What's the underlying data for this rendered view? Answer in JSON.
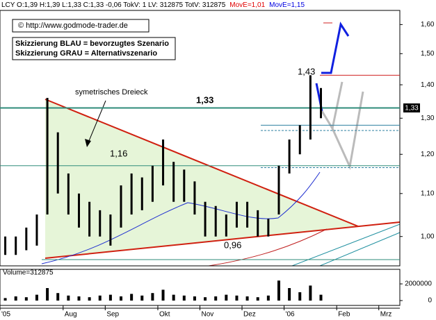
{
  "header": [
    {
      "text": "LCY O:1,39 H:1,39 L:1,33 C:1,33 -0,06 TokV: 1 LV: 312875 TotV: 312875",
      "color": "#000000"
    },
    {
      "text": "MovE=1,01",
      "color": "#e00000"
    },
    {
      "text": "MovE=1,15",
      "color": "#0000e0"
    }
  ],
  "annotations": {
    "copyright": "© http://www.godmode-trader.de",
    "legend_blue": "Skizzierung BLAU = bevorzugtes Szenario",
    "legend_grey": "Skizzierung GRAU = Alternativszenario",
    "pattern": "symetrisches Dreieck",
    "level_133": "1,33",
    "level_116": "1,16",
    "level_096": "0,96",
    "level_143": "1,43",
    "last_price": "1,33"
  },
  "chart_data": [
    {
      "type": "range",
      "log": true,
      "ylim": [
        0.937,
        1.651
      ],
      "yticks": [
        {
          "value": 1.0,
          "label": "1,00"
        },
        {
          "value": 1.1,
          "label": "1,10"
        },
        {
          "value": 1.2,
          "label": "1,20"
        },
        {
          "value": 1.3,
          "label": "1,30"
        },
        {
          "value": 1.4,
          "label": "1,40"
        },
        {
          "value": 1.5,
          "label": "1,50"
        },
        {
          "value": 1.6,
          "label": "1,60"
        }
      ],
      "categories": [
        "'05",
        null,
        null,
        null,
        null,
        null,
        "Aug",
        null,
        null,
        null,
        "Sep",
        null,
        null,
        null,
        null,
        "Okt",
        null,
        null,
        null,
        "Nov",
        null,
        null,
        null,
        "Dez",
        null,
        null,
        null,
        "'06",
        null,
        null,
        null,
        null,
        "Feb",
        null,
        null,
        null,
        "Mrz",
        null
      ],
      "color": "#000000",
      "low": [
        0.96,
        0.96,
        0.97,
        0.98,
        1.05,
        1.1,
        1.05,
        1.02,
        1.0,
        1.0,
        0.98,
        1.02,
        1.05,
        1.06,
        1.08,
        1.12,
        1.08,
        1.08,
        1.05,
        1.0,
        1.0,
        1.0,
        1.02,
        1.02,
        1.0,
        1.0,
        1.05,
        1.15,
        1.2,
        1.24,
        1.3,
        null,
        null,
        null,
        null,
        null,
        null,
        null
      ],
      "high": [
        1.0,
        1.0,
        1.02,
        1.05,
        1.36,
        1.26,
        1.15,
        1.1,
        1.08,
        1.06,
        1.05,
        1.12,
        1.15,
        1.14,
        1.17,
        1.24,
        1.18,
        1.16,
        1.13,
        1.08,
        1.07,
        1.05,
        1.08,
        1.08,
        1.06,
        1.04,
        1.17,
        1.24,
        1.28,
        1.43,
        1.39,
        null,
        null,
        null,
        null,
        null,
        null,
        null
      ],
      "levels": [
        {
          "value": 1.33,
          "color": "#2e8b7a"
        },
        {
          "value": 1.43,
          "color": "#d02020"
        },
        {
          "value": 1.28,
          "color": "#2e7fa0"
        },
        {
          "value": 1.265,
          "color": "#2e7fa0"
        },
        {
          "value": 1.17,
          "color": "#2e8b7a"
        },
        {
          "value": 1.165,
          "color": "#2e7fa0"
        },
        {
          "value": 0.95,
          "color": "#2e8b7a"
        }
      ]
    },
    {
      "type": "bar",
      "title": "Volume=312875",
      "ylim": [
        0,
        3000000
      ],
      "yticks": [
        0,
        2000000
      ],
      "color": "#000000",
      "values": [
        300000,
        500000,
        400000,
        700000,
        1500000,
        900000,
        600000,
        500000,
        400000,
        600000,
        700000,
        500000,
        800000,
        600000,
        900000,
        1300000,
        700000,
        600000,
        500000,
        400000,
        500000,
        700000,
        600000,
        500000,
        400000,
        600000,
        2400000,
        1500000,
        1000000,
        1800000,
        700000,
        null,
        null,
        null,
        null,
        null,
        null,
        null
      ]
    }
  ]
}
